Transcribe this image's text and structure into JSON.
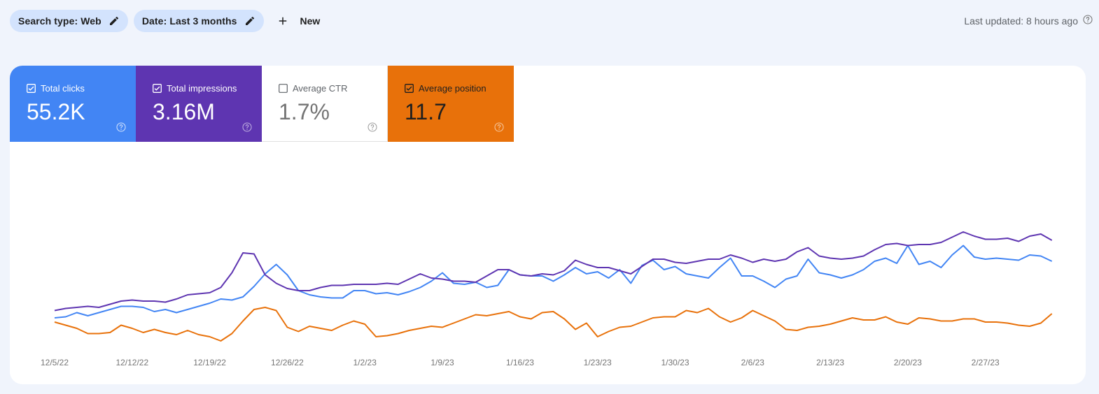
{
  "filters": {
    "chips": [
      {
        "label": "Search type: Web",
        "icon": "pencil-icon"
      },
      {
        "label": "Date: Last 3 months",
        "icon": "pencil-icon"
      }
    ],
    "new_label": "New",
    "new_icon": "plus-icon"
  },
  "status": {
    "last_updated": "Last updated: 8 hours ago",
    "icon": "help-icon"
  },
  "metrics": [
    {
      "label": "Total clicks",
      "value": "55.2K",
      "checked": true,
      "color": "#4285f4"
    },
    {
      "label": "Total impressions",
      "value": "3.16M",
      "checked": true,
      "color": "#5e35b1"
    },
    {
      "label": "Average CTR",
      "value": "1.7%",
      "checked": false,
      "color": "#ffffff"
    },
    {
      "label": "Average position",
      "value": "11.7",
      "checked": true,
      "color": "#e8710a"
    }
  ],
  "chart_data": {
    "type": "line",
    "title": "",
    "xlabel": "",
    "ylabel": "",
    "grid": false,
    "legend_position": "top (metric cards)",
    "x_tick_labels": [
      "12/5/22",
      "12/12/22",
      "12/19/22",
      "12/26/22",
      "1/2/23",
      "1/9/23",
      "1/16/23",
      "1/23/23",
      "1/30/23",
      "2/6/23",
      "2/13/23",
      "2/20/23",
      "2/27/23"
    ],
    "x_start": "12/5/22",
    "points_per_series": 91,
    "y_axis_hidden": true,
    "note": "Values are relative chart heights (0-100, higher = higher on chart) read from pixels; axes are unlabeled in the screenshot.",
    "series": [
      {
        "name": "Total impressions",
        "color": "#5e35b1",
        "values": [
          33,
          35,
          36,
          37,
          36,
          39,
          42,
          43,
          42,
          42,
          41,
          44,
          48,
          49,
          50,
          55,
          69,
          88,
          87,
          67,
          59,
          54,
          52,
          52,
          55,
          57,
          57,
          58,
          58,
          58,
          59,
          58,
          63,
          68,
          64,
          63,
          61,
          61,
          60,
          66,
          72,
          72,
          67,
          66,
          68,
          67,
          71,
          81,
          77,
          74,
          74,
          71,
          68,
          75,
          82,
          82,
          79,
          78,
          80,
          82,
          82,
          86,
          83,
          79,
          82,
          80,
          82,
          89,
          93,
          85,
          83,
          82,
          83,
          85,
          91,
          96,
          97,
          95,
          96,
          96,
          98,
          103,
          108,
          104,
          101,
          101,
          102,
          99,
          104,
          106,
          100
        ]
      },
      {
        "name": "Total clicks",
        "color": "#4285f4",
        "values": [
          26,
          27,
          31,
          28,
          31,
          34,
          37,
          37,
          36,
          32,
          34,
          31,
          34,
          37,
          40,
          44,
          43,
          46,
          56,
          68,
          77,
          67,
          52,
          48,
          46,
          45,
          45,
          52,
          52,
          49,
          50,
          48,
          51,
          55,
          61,
          69,
          59,
          58,
          60,
          55,
          57,
          72,
          67,
          66,
          66,
          61,
          67,
          74,
          68,
          70,
          64,
          72,
          59,
          76,
          81,
          72,
          75,
          68,
          66,
          64,
          74,
          83,
          66,
          66,
          61,
          55,
          63,
          66,
          82,
          69,
          67,
          64,
          67,
          72,
          80,
          83,
          78,
          95,
          77,
          80,
          74,
          86,
          95,
          84,
          82,
          83,
          82,
          81,
          86,
          85,
          80
        ]
      },
      {
        "name": "Average position",
        "color": "#e8710a",
        "values": [
          22,
          19,
          16,
          11,
          11,
          12,
          19,
          16,
          12,
          15,
          12,
          10,
          14,
          10,
          8,
          4,
          11,
          23,
          34,
          36,
          33,
          17,
          13,
          18,
          16,
          14,
          19,
          23,
          20,
          8,
          9,
          11,
          14,
          16,
          18,
          17,
          21,
          25,
          29,
          28,
          30,
          32,
          27,
          25,
          31,
          32,
          25,
          15,
          21,
          8,
          13,
          17,
          18,
          22,
          26,
          27,
          27,
          33,
          31,
          35,
          27,
          22,
          26,
          33,
          28,
          23,
          15,
          14,
          17,
          18,
          20,
          23,
          26,
          24,
          24,
          27,
          22,
          20,
          26,
          25,
          23,
          23,
          25,
          25,
          22,
          22,
          21,
          19,
          18,
          21,
          30
        ]
      }
    ]
  }
}
